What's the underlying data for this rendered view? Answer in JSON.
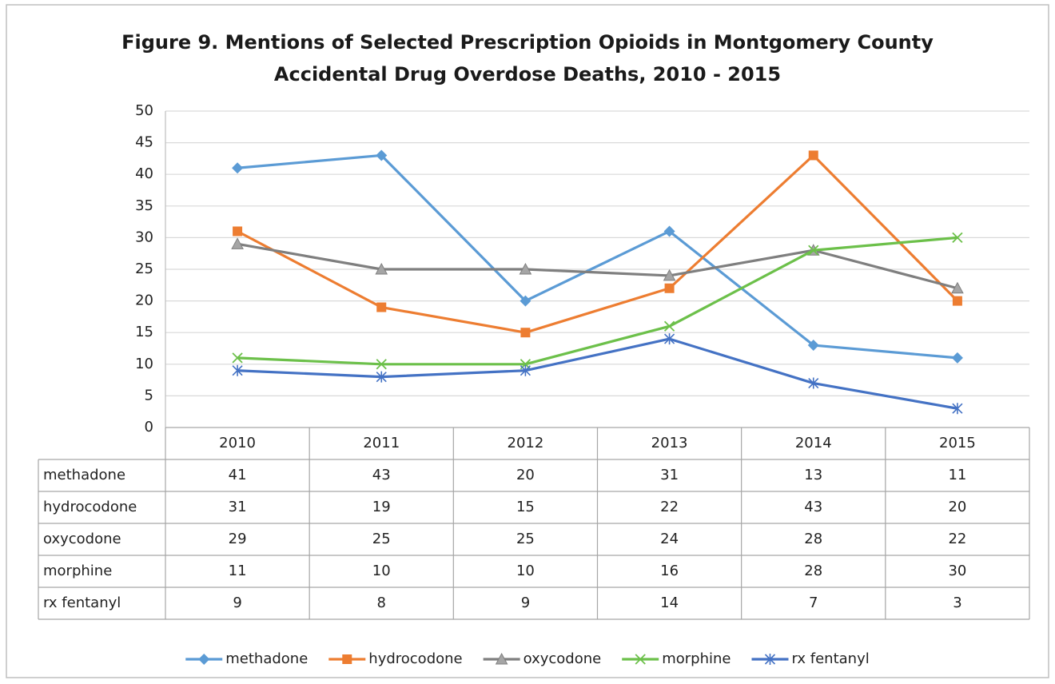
{
  "chart_data": {
    "type": "line",
    "title": [
      "Figure 9. Mentions of Selected Prescription Opioids in Montgomery County",
      "Accidental Drug Overdose Deaths, 2010 - 2015"
    ],
    "categories": [
      "2010",
      "2011",
      "2012",
      "2013",
      "2014",
      "2015"
    ],
    "series": [
      {
        "name": "methadone",
        "color": "#5b9bd5",
        "marker": "diamond",
        "values": [
          41,
          43,
          20,
          31,
          13,
          11
        ]
      },
      {
        "name": "hydrocodone",
        "color": "#ed7d31",
        "marker": "square",
        "values": [
          31,
          19,
          15,
          22,
          43,
          20
        ]
      },
      {
        "name": "oxycodone",
        "color": "#7f7f7f",
        "marker": "triangle",
        "values": [
          29,
          25,
          25,
          24,
          28,
          22
        ]
      },
      {
        "name": "morphine",
        "color": "#6cc04a",
        "marker": "x",
        "values": [
          11,
          10,
          10,
          16,
          28,
          30
        ]
      },
      {
        "name": "rx fentanyl",
        "color": "#4472c4",
        "marker": "star",
        "values": [
          9,
          8,
          9,
          14,
          7,
          3
        ]
      }
    ],
    "ylim": [
      0,
      50
    ],
    "yticks": [
      0,
      5,
      10,
      15,
      20,
      25,
      30,
      35,
      40,
      45,
      50
    ],
    "grid": true,
    "legend": "bottom"
  }
}
